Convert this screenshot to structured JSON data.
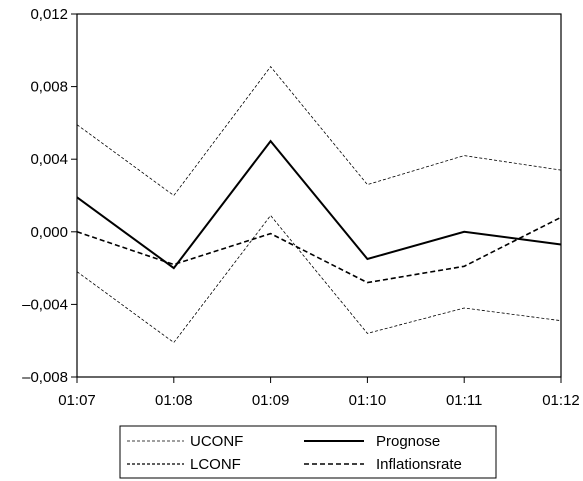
{
  "chart_data": {
    "type": "line",
    "title": "",
    "xlabel": "",
    "ylabel": "",
    "categories": [
      "01:07",
      "01:08",
      "01:09",
      "01:10",
      "01:11",
      "01:12"
    ],
    "ylim": [
      -0.008,
      0.012
    ],
    "yticks": [
      {
        "value": 0.012,
        "label": "0,012"
      },
      {
        "value": 0.008,
        "label": "0,008"
      },
      {
        "value": 0.004,
        "label": "0,004"
      },
      {
        "value": 0.0,
        "label": "0,000"
      },
      {
        "value": -0.004,
        "label": "–0,004"
      },
      {
        "value": -0.008,
        "label": "–0,008"
      }
    ],
    "grid": false,
    "legend_position": "bottom",
    "series": [
      {
        "name": "UCONF",
        "style": "thin-dashed",
        "values": [
          0.0059,
          0.002,
          0.0091,
          0.0026,
          0.0042,
          0.0034
        ]
      },
      {
        "name": "LCONF",
        "style": "thin-dashed",
        "values": [
          -0.0022,
          -0.0061,
          0.0009,
          -0.0056,
          -0.0042,
          -0.0049
        ]
      },
      {
        "name": "Prognose",
        "style": "solid",
        "values": [
          0.0019,
          -0.002,
          0.005,
          -0.0015,
          0.0,
          -0.0007
        ]
      },
      {
        "name": "Inflationsrate",
        "style": "thick-dashed",
        "values": [
          0.0,
          -0.0018,
          -0.0001,
          -0.0028,
          -0.0019,
          0.0008
        ]
      }
    ]
  }
}
